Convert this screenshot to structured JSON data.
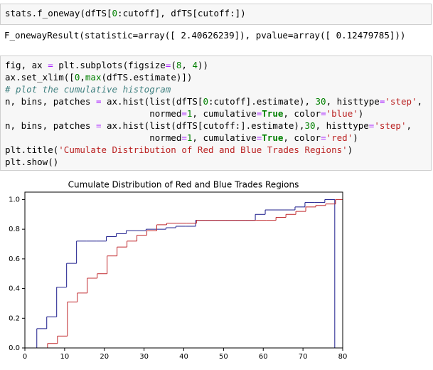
{
  "cells": [
    {
      "input": [
        "stats.f_oneway(dfTS[0:cutoff], dfTS[cutoff:])"
      ],
      "output": "F_onewayResult(statistic=array([ 2.40626239]), pvalue=array([ 0.12479785]))"
    },
    {
      "input": [
        "fig, ax = plt.subplots(figsize=(8, 4))",
        "ax.set_xlim([0,max(dfTS.estimate)])",
        "# plot the cumulative histogram",
        "n, bins, patches = ax.hist(list(dfTS[0:cutoff].estimate), 30, histtype='step',",
        "                           normed=1, cumulative=True, color='blue')",
        "n, bins, patches = ax.hist(list(dfTS[cutoff:].estimate),30, histtype='step',",
        "                           normed=1, cumulative=True, color='red')",
        "plt.title('Cumulate Distribution of Red and Blue Trades Regions')",
        "plt.show()"
      ]
    }
  ],
  "chart_data": {
    "type": "step-histogram",
    "title": "Cumulate Distribution of Red and Blue Trades Regions",
    "xlim": [
      0,
      80
    ],
    "ylim": [
      0,
      1.05
    ],
    "xticks": [
      0,
      10,
      20,
      30,
      40,
      50,
      60,
      70,
      80
    ],
    "yticks": [
      {
        "value": 0,
        "label": "0.0"
      },
      0.2,
      0.4,
      0.6,
      0.8,
      {
        "value": 1,
        "label": "1.0"
      }
    ],
    "series": [
      {
        "color": "#1c1c8c",
        "bins": [
          3,
          5.5,
          8,
          10.5,
          13,
          15.5,
          18,
          20.5,
          23,
          25.5,
          28,
          30.5,
          33,
          35.5,
          38,
          40.5,
          43,
          45.5,
          48,
          50.5,
          53,
          55.5,
          58,
          60.5,
          63,
          65.5,
          68,
          70.5,
          73,
          75.5,
          78
        ],
        "values": [
          0.13,
          0.21,
          0.41,
          0.57,
          0.72,
          0.72,
          0.72,
          0.75,
          0.77,
          0.79,
          0.79,
          0.8,
          0.8,
          0.81,
          0.82,
          0.82,
          0.86,
          0.86,
          0.86,
          0.86,
          0.86,
          0.86,
          0.9,
          0.93,
          0.93,
          0.93,
          0.95,
          0.98,
          0.98,
          1.0
        ]
      },
      {
        "color": "#c0282c",
        "bins": [
          5.7,
          8.2,
          10.7,
          13.2,
          15.7,
          18.2,
          20.7,
          23.2,
          25.7,
          28.2,
          30.7,
          33.2,
          35.7,
          38.2,
          40.7,
          43.2,
          45.7,
          48.2,
          50.7,
          53.2,
          55.7,
          58.2,
          60.7,
          63.2,
          65.7,
          68.2,
          70.7,
          73.2,
          75.7,
          78.2,
          80.7
        ],
        "values": [
          0.03,
          0.08,
          0.31,
          0.37,
          0.47,
          0.5,
          0.62,
          0.68,
          0.72,
          0.76,
          0.79,
          0.83,
          0.84,
          0.84,
          0.84,
          0.86,
          0.86,
          0.86,
          0.86,
          0.86,
          0.86,
          0.86,
          0.86,
          0.88,
          0.9,
          0.92,
          0.95,
          0.96,
          0.97,
          1.0
        ]
      }
    ]
  }
}
